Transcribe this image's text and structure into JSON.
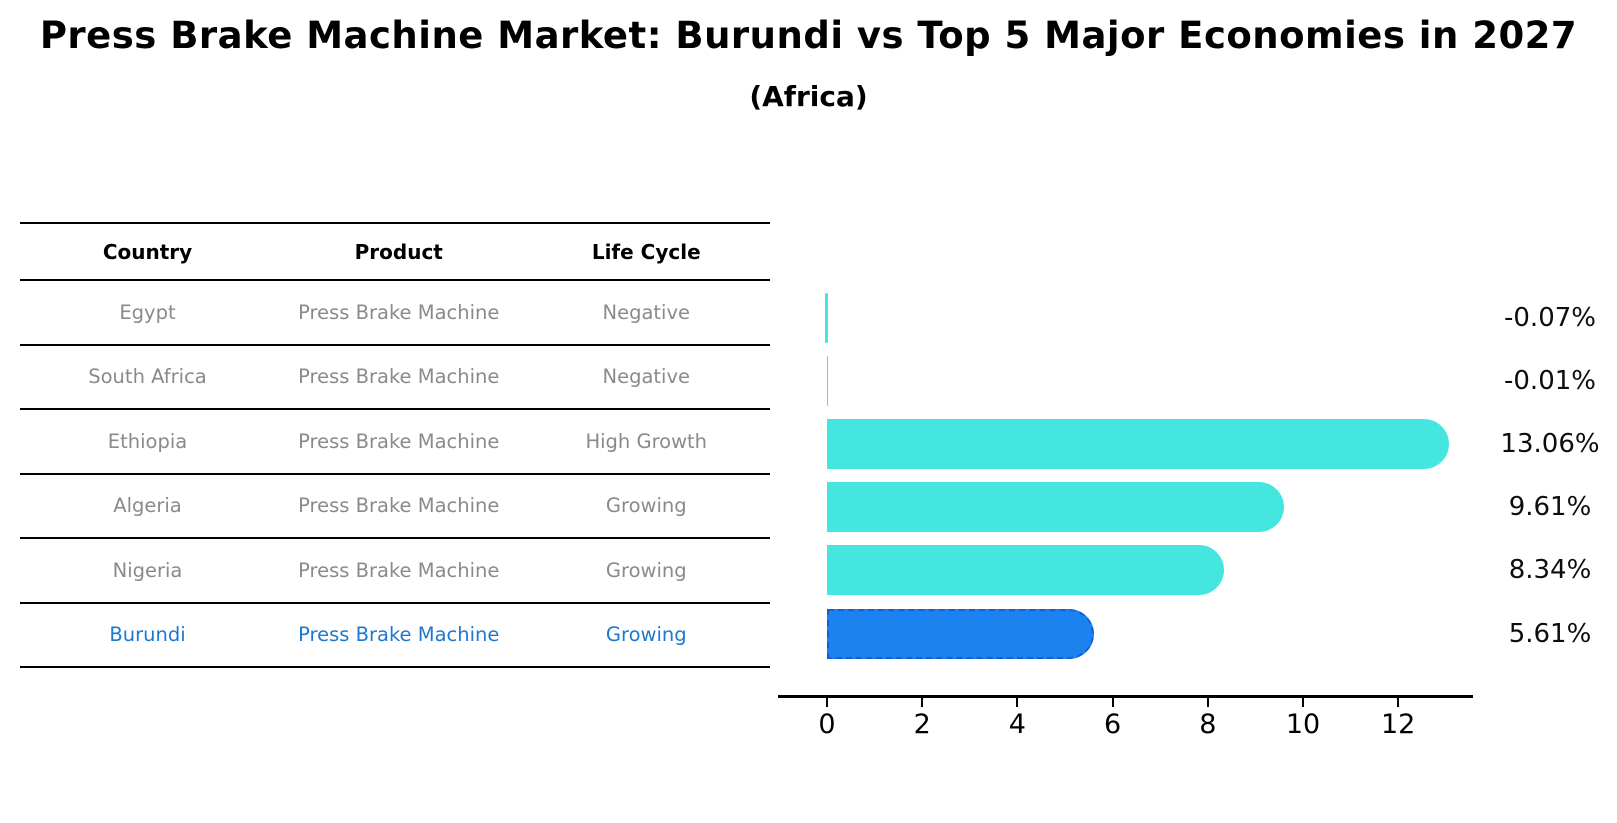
{
  "page": {
    "title": "Press Brake Machine Market: Burundi vs Top 5 Major Economies in 2027",
    "subtitle": "(Africa)"
  },
  "table": {
    "headers": [
      "Country",
      "Product",
      "Life Cycle"
    ],
    "rows": [
      {
        "country": "Egypt",
        "product": "Press Brake Machine",
        "life_cycle": "Negative",
        "highlighted": false
      },
      {
        "country": "South Africa",
        "product": "Press Brake Machine",
        "life_cycle": "Negative",
        "highlighted": false
      },
      {
        "country": "Ethiopia",
        "product": "Press Brake Machine",
        "life_cycle": "High Growth",
        "highlighted": false
      },
      {
        "country": "Algeria",
        "product": "Press Brake Machine",
        "life_cycle": "Growing",
        "highlighted": false
      },
      {
        "country": "Nigeria",
        "product": "Press Brake Machine",
        "life_cycle": "Growing",
        "highlighted": false
      },
      {
        "country": "Burundi",
        "product": "Press Brake Machine",
        "life_cycle": "Growing",
        "highlighted": true
      }
    ]
  },
  "chart_data": {
    "type": "bar",
    "orientation": "horizontal",
    "title": "Press Brake Machine Market: Burundi vs Top 5 Major Economies in 2027",
    "subtitle": "(Africa)",
    "categories": [
      "Egypt",
      "South Africa",
      "Ethiopia",
      "Algeria",
      "Nigeria",
      "Burundi"
    ],
    "values": [
      -0.07,
      -0.01,
      13.06,
      9.61,
      8.34,
      5.61
    ],
    "value_labels": [
      "-0.07%",
      "-0.01%",
      "13.06%",
      "9.61%",
      "8.34%",
      "5.61%"
    ],
    "x_ticks": [
      "0",
      "2",
      "4",
      "6",
      "8",
      "10",
      "12"
    ],
    "x_tick_values": [
      0,
      2,
      4,
      6,
      8,
      10,
      12
    ],
    "xlim": [
      0,
      13.5
    ],
    "grid": false,
    "legend": "none",
    "bar_color": "#45E6DF",
    "highlight_bar_color": "#1B82F0",
    "highlight_border_color": "#135fd0",
    "highlight_index": 5
  },
  "colors": {
    "background": "#ffffff",
    "turquoise": "#45E6DF",
    "accent_blue": "#1B82F0",
    "highlight_text": "#1d79cf",
    "row_text": "#8a8a8a",
    "axis": "#000000"
  }
}
